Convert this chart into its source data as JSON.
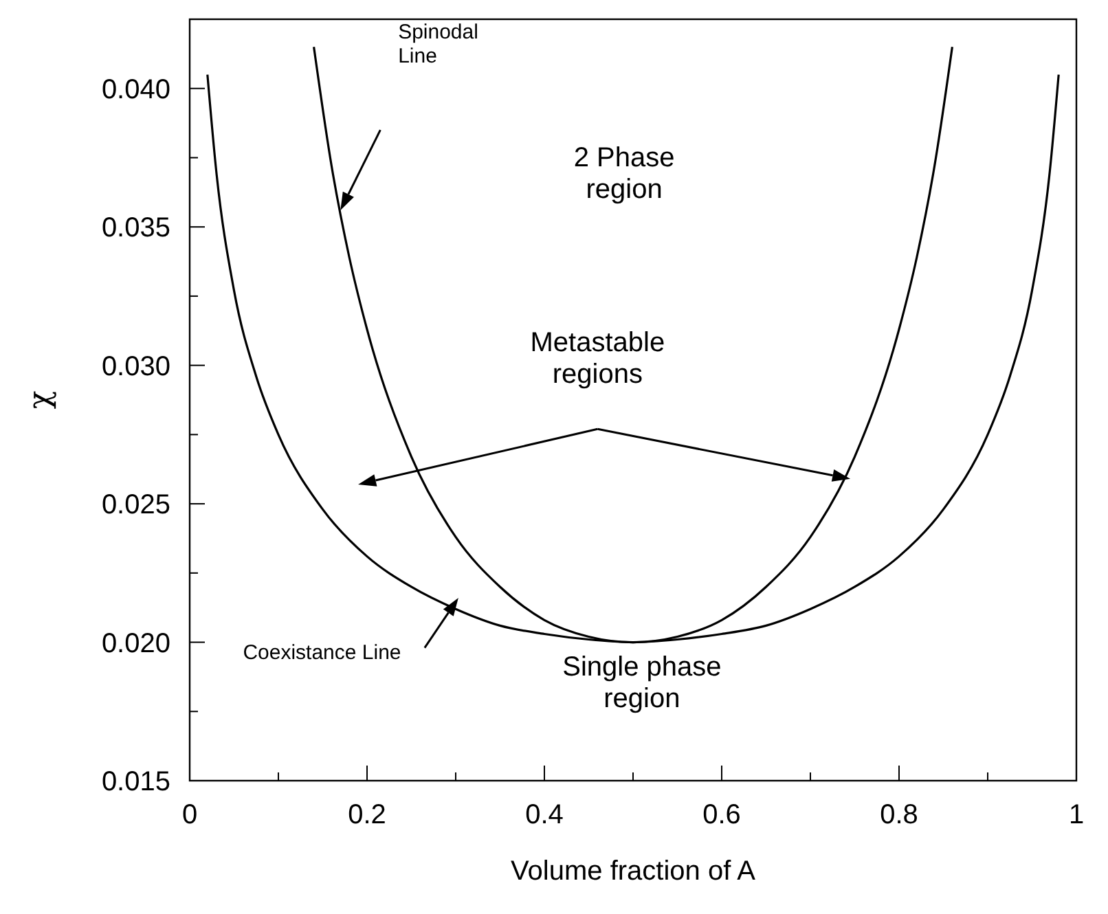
{
  "chart_data": {
    "type": "line",
    "xlabel": "Volume fraction of A",
    "ylabel": "χ",
    "xlim": [
      0,
      1
    ],
    "ylim": [
      0.015,
      0.0425
    ],
    "xticks": [
      0,
      {
        "value": 0.1,
        "label": null
      },
      0.2,
      {
        "value": 0.3,
        "label": null
      },
      0.4,
      {
        "value": 0.5,
        "label": null
      },
      0.6,
      {
        "value": 0.7,
        "label": null
      },
      0.8,
      {
        "value": 0.9,
        "label": null
      },
      1
    ],
    "yticks": [
      {
        "value": 0.015,
        "label": "0.015"
      },
      {
        "value": 0.0175,
        "label": null
      },
      {
        "value": 0.02,
        "label": "0.020"
      },
      {
        "value": 0.0225,
        "label": null
      },
      {
        "value": 0.025,
        "label": "0.025"
      },
      {
        "value": 0.0275,
        "label": null
      },
      {
        "value": 0.03,
        "label": "0.030"
      },
      {
        "value": 0.0325,
        "label": null
      },
      {
        "value": 0.035,
        "label": "0.035"
      },
      {
        "value": 0.0375,
        "label": null
      },
      {
        "value": 0.04,
        "label": "0.040"
      }
    ],
    "grid": false,
    "marker": "none",
    "line_style": "solid",
    "series": [
      {
        "color": "#000000",
        "x": [
          0.14,
          0.16,
          0.18,
          0.2,
          0.25,
          0.3,
          0.35,
          0.4,
          0.45,
          0.5,
          0.55,
          0.6,
          0.65,
          0.7,
          0.75,
          0.8,
          0.82,
          0.84,
          0.86
        ],
        "values": [
          0.0415,
          0.0372,
          0.0339,
          0.0313,
          0.0267,
          0.0238,
          0.022,
          0.0208,
          0.0202,
          0.02,
          0.0202,
          0.0208,
          0.022,
          0.0238,
          0.0267,
          0.0313,
          0.0339,
          0.0372,
          0.0415
        ]
      },
      {
        "color": "#000000",
        "x": [
          0.02,
          0.03,
          0.05,
          0.075,
          0.1,
          0.15,
          0.2,
          0.25,
          0.3,
          0.35,
          0.4,
          0.45,
          0.5,
          0.55,
          0.6,
          0.65,
          0.7,
          0.75,
          0.8,
          0.85,
          0.9,
          0.925,
          0.95,
          0.97,
          0.98
        ],
        "values": [
          0.0405,
          0.037,
          0.0327,
          0.0296,
          0.0275,
          0.0248,
          0.0231,
          0.022,
          0.0212,
          0.0206,
          0.0203,
          0.0201,
          0.02,
          0.0201,
          0.0203,
          0.0206,
          0.0212,
          0.022,
          0.0231,
          0.0248,
          0.0275,
          0.0296,
          0.0327,
          0.037,
          0.0405
        ]
      }
    ],
    "annotations": [
      "Spinodal Line",
      "2 Phase region",
      "Metastable regions",
      "Coexistance Line",
      "Single phase region"
    ]
  }
}
